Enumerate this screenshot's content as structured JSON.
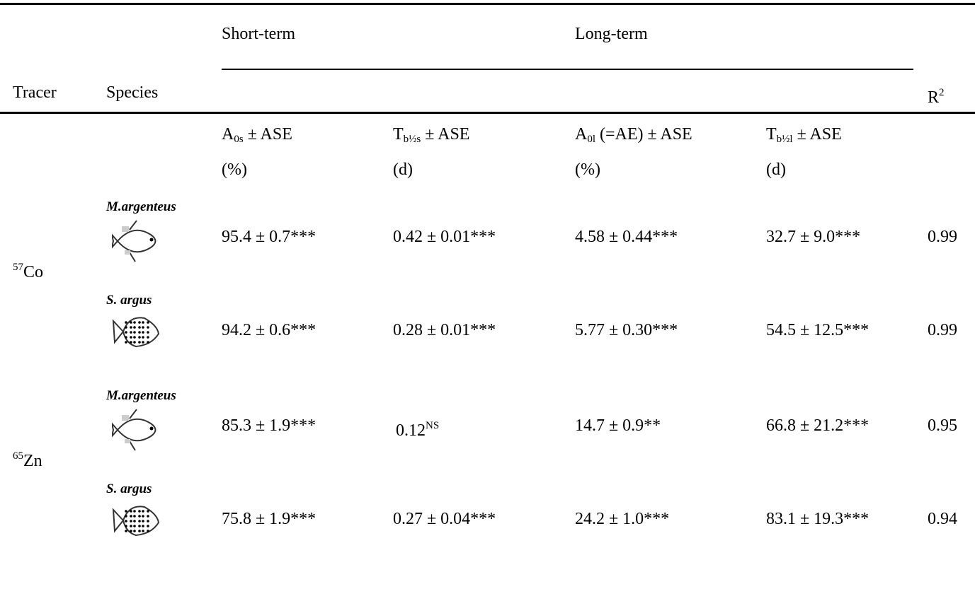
{
  "header": {
    "tracer": "Tracer",
    "species": "Species",
    "short_term": "Short-term",
    "long_term": "Long-term",
    "r2": {
      "base": "R",
      "sup": "2"
    },
    "columns": [
      {
        "base": "A",
        "sub": "0s",
        "rest": " ± ASE",
        "unit": "(%)"
      },
      {
        "base": "T",
        "sub": "b½s",
        "rest": " ± ASE",
        "unit": "(d)"
      },
      {
        "base": "A",
        "sub": "0l",
        "rest": " (=AE) ± ASE",
        "unit": "(%)"
      },
      {
        "base": "T",
        "sub": "b½l",
        "rest": " ± ASE",
        "unit": "(d)"
      }
    ]
  },
  "rows": [
    {
      "tracer": {
        "sup": "57",
        "base": "Co"
      },
      "species": [
        {
          "name": "M.argenteus",
          "values": [
            "95.4 ± 0.7***",
            "0.42 ± 0.01***",
            "4.58 ± 0.44***",
            "32.7 ± 9.0***"
          ],
          "r2": "0.99"
        },
        {
          "name": "S. argus",
          "values": [
            "94.2 ± 0.6***",
            "0.28 ± 0.01***",
            "5.77 ± 0.30***",
            "54.5 ± 12.5***"
          ],
          "r2": "0.99"
        }
      ]
    },
    {
      "tracer": {
        "sup": "65",
        "base": "Zn"
      },
      "species": [
        {
          "name": "M.argenteus",
          "values": [
            "85.3 ± 1.9***",
            {
              "base": "0.12",
              "sup": "NS"
            },
            "14.7 ± 0.9**",
            "66.8 ± 21.2***"
          ],
          "r2": "0.95"
        },
        {
          "name": "S. argus",
          "values": [
            "75.8 ± 1.9***",
            "0.27 ± 0.04***",
            "24.2 ± 1.0***",
            "83.1 ± 19.3***"
          ],
          "r2": "0.94"
        }
      ]
    }
  ]
}
